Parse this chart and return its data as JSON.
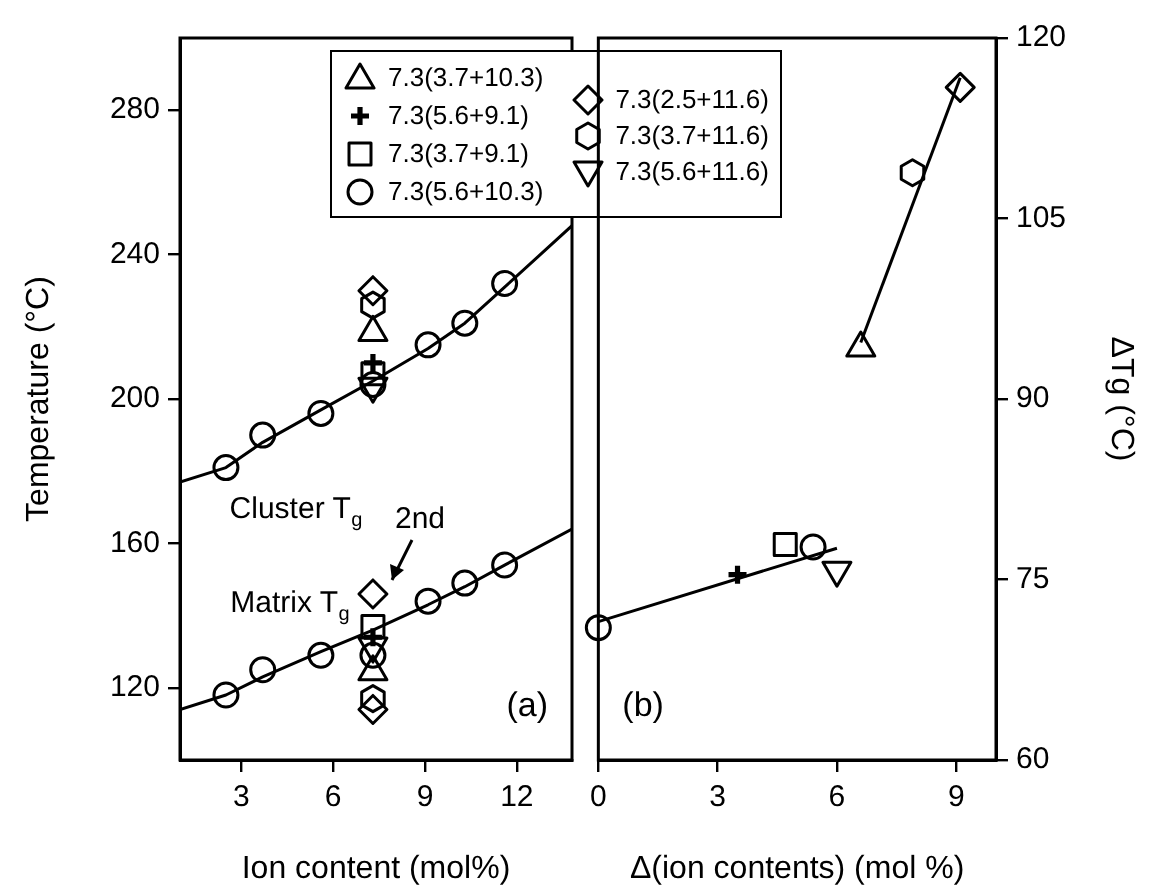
{
  "chart_data": [
    {
      "type": "scatter",
      "xlabel": "Ion content (mol%)",
      "ylabel": "Temperature (°C)",
      "xlim": [
        1,
        13.8
      ],
      "xticks": [
        3,
        6,
        9,
        12
      ],
      "ylim": [
        100,
        300
      ],
      "yticks": [
        120,
        160,
        200,
        240,
        280
      ],
      "grid": false,
      "legend": "top right",
      "annotations": [
        "Cluster T$_{g}$",
        "Matrix T$_{g}$",
        "2nd",
        "(a)"
      ],
      "series": [
        {
          "color": "#000000",
          "marker": "circle",
          "x": [
            2.5,
            3.7,
            5.6,
            9.1,
            10.3,
            11.6,
            2.5,
            3.7,
            5.6,
            9.1,
            10.3,
            11.6
          ],
          "values": [
            181,
            190,
            196,
            215,
            221,
            232,
            118,
            125,
            129,
            144,
            149,
            154
          ]
        },
        {
          "name": "7.3(3.7+10.3)",
          "color": "#000000",
          "marker": "triangle",
          "x": [
            7.3,
            7.3
          ],
          "values": [
            219,
            125
          ]
        },
        {
          "name": "7.3(5.6+9.1)",
          "color": "#000000",
          "marker": "cross",
          "x": [
            7.3,
            7.3
          ],
          "values": [
            210,
            134
          ]
        },
        {
          "name": "7.3(3.7+9.1)",
          "color": "#000000",
          "marker": "square",
          "x": [
            7.3,
            7.3
          ],
          "values": [
            207,
            137
          ]
        },
        {
          "name": "7.3(5.6+10.3)",
          "color": "#000000",
          "marker": "circle",
          "x": [
            7.3,
            7.3
          ],
          "values": [
            204,
            129
          ]
        },
        {
          "name": "7.3(2.5+11.6)",
          "color": "#000000",
          "marker": "diamond",
          "x": [
            7.3,
            7.3,
            7.3
          ],
          "values": [
            230,
            146,
            114
          ]
        },
        {
          "name": "7.3(3.7+11.6)",
          "color": "#000000",
          "x": [
            7.3,
            7.3
          ],
          "values": [
            226,
            117
          ]
        },
        {
          "name": "7.3(5.6+11.6)",
          "color": "#000000",
          "marker": "triangle-down",
          "x": [
            7.3,
            7.3
          ],
          "values": [
            203,
            131
          ]
        },
        {
          "type": "line",
          "color": "#000000",
          "marker": "none",
          "x": [
            1,
            2.5,
            3.7,
            5.6,
            7.3,
            9.1,
            10.3,
            11.6,
            13.8
          ],
          "values": [
            177,
            181,
            188,
            197,
            205,
            214,
            221,
            231,
            248
          ]
        },
        {
          "type": "line",
          "color": "#000000",
          "marker": "none",
          "x": [
            1,
            2.5,
            3.7,
            5.6,
            7.3,
            9.1,
            10.3,
            11.6,
            13.8
          ],
          "values": [
            114,
            118,
            123,
            130,
            136,
            143,
            148,
            154,
            164
          ]
        }
      ]
    },
    {
      "type": "scatter",
      "xlabel": "Δ(ion contents) (mol %)",
      "y2label": "ΔTg (°C)",
      "xlim": [
        0,
        10
      ],
      "xticks": [
        0,
        3,
        6,
        9
      ],
      "y2lim": [
        60,
        120
      ],
      "y2ticks": [
        60,
        75,
        90,
        105,
        120
      ],
      "grid": false,
      "annotations": [
        "(b)"
      ],
      "series": [
        {
          "color": "#000000",
          "marker": "circle",
          "axis": "y2",
          "x": [
            0
          ],
          "values": [
            71
          ]
        },
        {
          "color": "#000000",
          "marker": "cross",
          "axis": "y2",
          "x": [
            3.5
          ],
          "values": [
            75.4
          ]
        },
        {
          "color": "#000000",
          "marker": "square",
          "axis": "y2",
          "x": [
            4.7
          ],
          "values": [
            77.9
          ]
        },
        {
          "color": "#000000",
          "marker": "circle",
          "axis": "y2",
          "x": [
            5.4
          ],
          "values": [
            77.7
          ]
        },
        {
          "color": "#000000",
          "marker": "triangle-down",
          "axis": "y2",
          "x": [
            6.0
          ],
          "values": [
            75.6
          ]
        },
        {
          "color": "#000000",
          "marker": "triangle",
          "axis": "y2",
          "x": [
            6.6
          ],
          "values": [
            94.4
          ]
        },
        {
          "color": "#000000",
          "axis": "y2",
          "x": [
            7.9
          ],
          "values": [
            108.8
          ]
        },
        {
          "color": "#000000",
          "marker": "diamond",
          "axis": "y2",
          "x": [
            9.1
          ],
          "values": [
            115.9
          ]
        },
        {
          "type": "line",
          "color": "#000000",
          "marker": "none",
          "axis": "y2",
          "x": [
            0,
            6
          ],
          "values": [
            71.5,
            77.6
          ]
        },
        {
          "type": "line",
          "color": "#000000",
          "marker": "none",
          "axis": "y2",
          "x": [
            6.6,
            9.1
          ],
          "values": [
            94.7,
            116.7
          ]
        }
      ]
    }
  ]
}
